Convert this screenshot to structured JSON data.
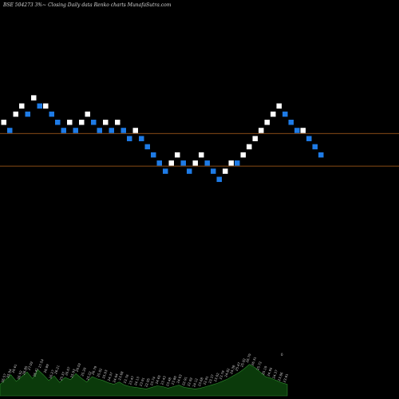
{
  "chart_data": {
    "type": "renko",
    "title": "BSE 504273 3%~ Closing Daily data  Renko  charts MunafaSutra.com",
    "ylim": [
      0,
      46
    ],
    "level_lines": [
      30,
      26
    ],
    "colors": {
      "background": "#000000",
      "up_brick": "#ffffff",
      "down_brick": "#1e7be6",
      "level_line": "#b5651d",
      "volume_fill": "#0b3a0b",
      "volume_line": "#2e8b2e"
    },
    "bricks": [
      {
        "level": 31,
        "dir": "up"
      },
      {
        "level": 30,
        "dir": "down"
      },
      {
        "level": 32,
        "dir": "up"
      },
      {
        "level": 33,
        "dir": "up"
      },
      {
        "level": 32,
        "dir": "down"
      },
      {
        "level": 34,
        "dir": "up"
      },
      {
        "level": 33,
        "dir": "down"
      },
      {
        "level": 33,
        "dir": "up"
      },
      {
        "level": 32,
        "dir": "down"
      },
      {
        "level": 31,
        "dir": "down"
      },
      {
        "level": 30,
        "dir": "down"
      },
      {
        "level": 31,
        "dir": "up"
      },
      {
        "level": 30,
        "dir": "down"
      },
      {
        "level": 31,
        "dir": "up"
      },
      {
        "level": 32,
        "dir": "up"
      },
      {
        "level": 31,
        "dir": "down"
      },
      {
        "level": 30,
        "dir": "down"
      },
      {
        "level": 31,
        "dir": "up"
      },
      {
        "level": 30,
        "dir": "down"
      },
      {
        "level": 31,
        "dir": "up"
      },
      {
        "level": 30,
        "dir": "down"
      },
      {
        "level": 29,
        "dir": "down"
      },
      {
        "level": 30,
        "dir": "up"
      },
      {
        "level": 29,
        "dir": "down"
      },
      {
        "level": 28,
        "dir": "down"
      },
      {
        "level": 27,
        "dir": "down"
      },
      {
        "level": 26,
        "dir": "down"
      },
      {
        "level": 25,
        "dir": "down"
      },
      {
        "level": 26,
        "dir": "up"
      },
      {
        "level": 27,
        "dir": "up"
      },
      {
        "level": 26,
        "dir": "down"
      },
      {
        "level": 25,
        "dir": "down"
      },
      {
        "level": 26,
        "dir": "up"
      },
      {
        "level": 27,
        "dir": "up"
      },
      {
        "level": 26,
        "dir": "down"
      },
      {
        "level": 25,
        "dir": "down"
      },
      {
        "level": 24,
        "dir": "down"
      },
      {
        "level": 25,
        "dir": "up"
      },
      {
        "level": 26,
        "dir": "up"
      },
      {
        "level": 26,
        "dir": "down"
      },
      {
        "level": 27,
        "dir": "up"
      },
      {
        "level": 28,
        "dir": "up"
      },
      {
        "level": 29,
        "dir": "up"
      },
      {
        "level": 30,
        "dir": "up"
      },
      {
        "level": 31,
        "dir": "up"
      },
      {
        "level": 32,
        "dir": "up"
      },
      {
        "level": 33,
        "dir": "up"
      },
      {
        "level": 32,
        "dir": "down"
      },
      {
        "level": 31,
        "dir": "down"
      },
      {
        "level": 30,
        "dir": "down"
      },
      {
        "level": 30,
        "dir": "up"
      },
      {
        "level": 29,
        "dir": "down"
      },
      {
        "level": 28,
        "dir": "down"
      },
      {
        "level": 27,
        "dir": "down"
      }
    ],
    "volume_profile": [
      0.3,
      0.42,
      0.55,
      0.38,
      0.5,
      0.62,
      0.45,
      0.68,
      0.55,
      0.4,
      0.52,
      0.35,
      0.48,
      0.42,
      0.58,
      0.46,
      0.36,
      0.5,
      0.44,
      0.4,
      0.34,
      0.3,
      0.36,
      0.28,
      0.24,
      0.22,
      0.2,
      0.18,
      0.22,
      0.26,
      0.24,
      0.2,
      0.24,
      0.28,
      0.22,
      0.2,
      0.18,
      0.2,
      0.24,
      0.28,
      0.32,
      0.38,
      0.44,
      0.52,
      0.6,
      0.7,
      0.82,
      0.74,
      0.62,
      0.5,
      0.46,
      0.4,
      0.34,
      0.3
    ],
    "volume_labels": [
      "26.57",
      "25.94",
      "26.61",
      "26.92",
      "26.85",
      "27.02",
      "26.41",
      "27.54",
      "26.89",
      "26.27",
      "26.21",
      "25.37",
      "26.67",
      "25.93",
      "26.02",
      "25.20",
      "25.22",
      "26.79",
      "25.02",
      "25.03",
      "24.37",
      "24.64",
      "23.68",
      "23.76",
      "23.47",
      "24.13",
      "23.91",
      "22.95",
      "23.74",
      "24.65",
      "23.43",
      "23.48",
      "23.80",
      "24.03",
      "22.91",
      "22.92",
      "24.12",
      "23.68",
      "22.91",
      "23.37",
      "23.02",
      "23.79",
      "24.82",
      "24.38",
      "25.47",
      "25.92",
      "26.79",
      "26.31",
      "25.72",
      "25.19",
      "24.95",
      "24.37",
      "23.86",
      "23.81"
    ],
    "last_value_label": "0"
  }
}
